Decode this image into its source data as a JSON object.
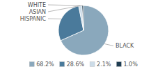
{
  "chart_data": {
    "type": "pie",
    "categories": [
      "BLACK",
      "HISPANIC",
      "ASIAN",
      "WHITE"
    ],
    "values": [
      68.2,
      28.6,
      2.1,
      1.0
    ],
    "value_labels": [
      "68.2%",
      "28.6%",
      "2.1%",
      "1.0%"
    ],
    "colors": [
      "#8aa8bc",
      "#4a7a9b",
      "#ccdce8",
      "#1e3d52"
    ],
    "legend": "bottom"
  }
}
